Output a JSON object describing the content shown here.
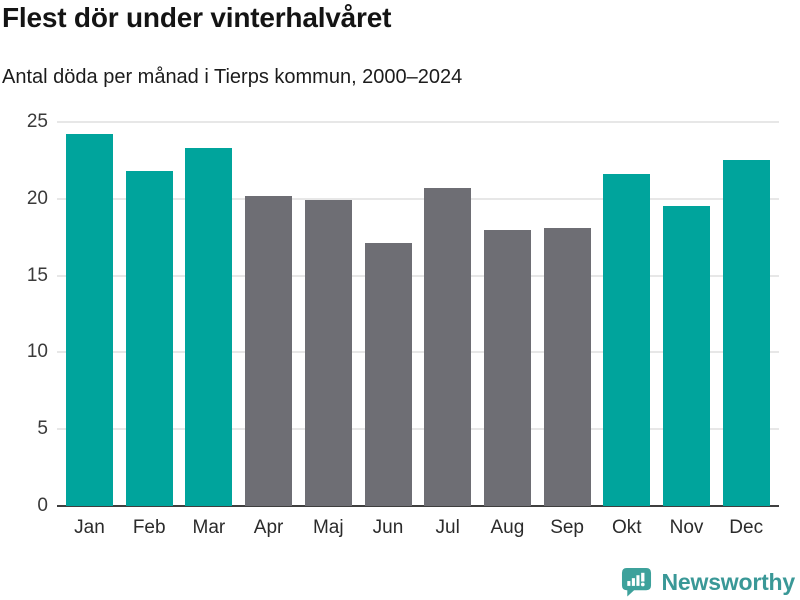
{
  "title": "Flest dör under vinterhalvåret",
  "subtitle": "Antal döda per månad i Tierps kommun, 2000–2024",
  "chart_data": {
    "type": "bar",
    "title": "Flest dör under vinterhalvåret",
    "subtitle": "Antal döda per månad i Tierps kommun, 2000–2024",
    "categories": [
      "Jan",
      "Feb",
      "Mar",
      "Apr",
      "Maj",
      "Jun",
      "Jul",
      "Aug",
      "Sep",
      "Okt",
      "Nov",
      "Dec"
    ],
    "values": [
      24.2,
      21.8,
      23.3,
      20.2,
      19.9,
      17.1,
      20.7,
      18.0,
      18.1,
      21.6,
      19.5,
      22.5
    ],
    "bar_groups": [
      "winter",
      "winter",
      "winter",
      "summer",
      "summer",
      "summer",
      "summer",
      "summer",
      "summer",
      "winter",
      "winter",
      "winter"
    ],
    "xlabel": "",
    "ylabel": "",
    "ylim": [
      0,
      25
    ],
    "y_ticks": [
      0,
      5,
      10,
      15,
      20,
      25
    ],
    "grid": true,
    "legend": false,
    "colors": {
      "winter": "#00a49c",
      "summer": "#6e6e74",
      "gridline": "#e7e7e7",
      "axis": "#3f3f3f"
    }
  },
  "footer": {
    "brand": "Newsworthy",
    "logo_icon": "newsworthy-speech-bubble-chart-icon",
    "brand_color": "#3a9897",
    "icon_color": "#3da19b"
  }
}
